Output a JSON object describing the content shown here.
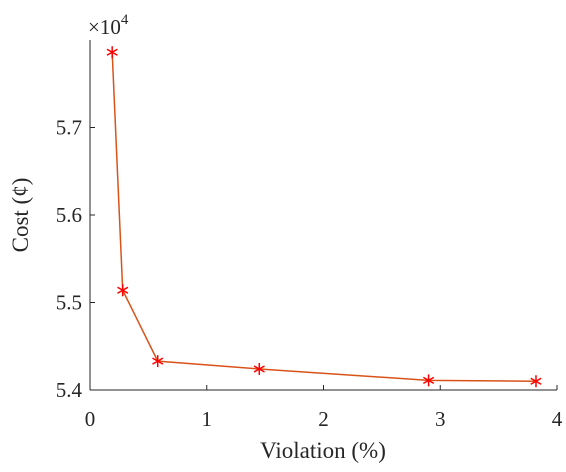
{
  "chart_data": {
    "type": "line",
    "x_label": "Violation (%)",
    "y_label": "Cost (¢)",
    "y_multiplier": "×10",
    "y_multiplier_exponent": "4",
    "x": [
      0.19,
      0.28,
      0.58,
      1.45,
      2.9,
      3.82
    ],
    "series": [
      {
        "color": "#d95319",
        "marker_color": "#ff0000",
        "marker": "*",
        "values": [
          5.786,
          5.514,
          5.433,
          5.424,
          5.411,
          5.41
        ]
      }
    ],
    "xlim": [
      0,
      4
    ],
    "xticks": [
      0,
      1,
      2,
      3,
      4
    ],
    "ylim": [
      5.4,
      5.8
    ],
    "yticks": [
      5.4,
      5.5,
      5.6,
      5.7
    ],
    "grid": false
  }
}
